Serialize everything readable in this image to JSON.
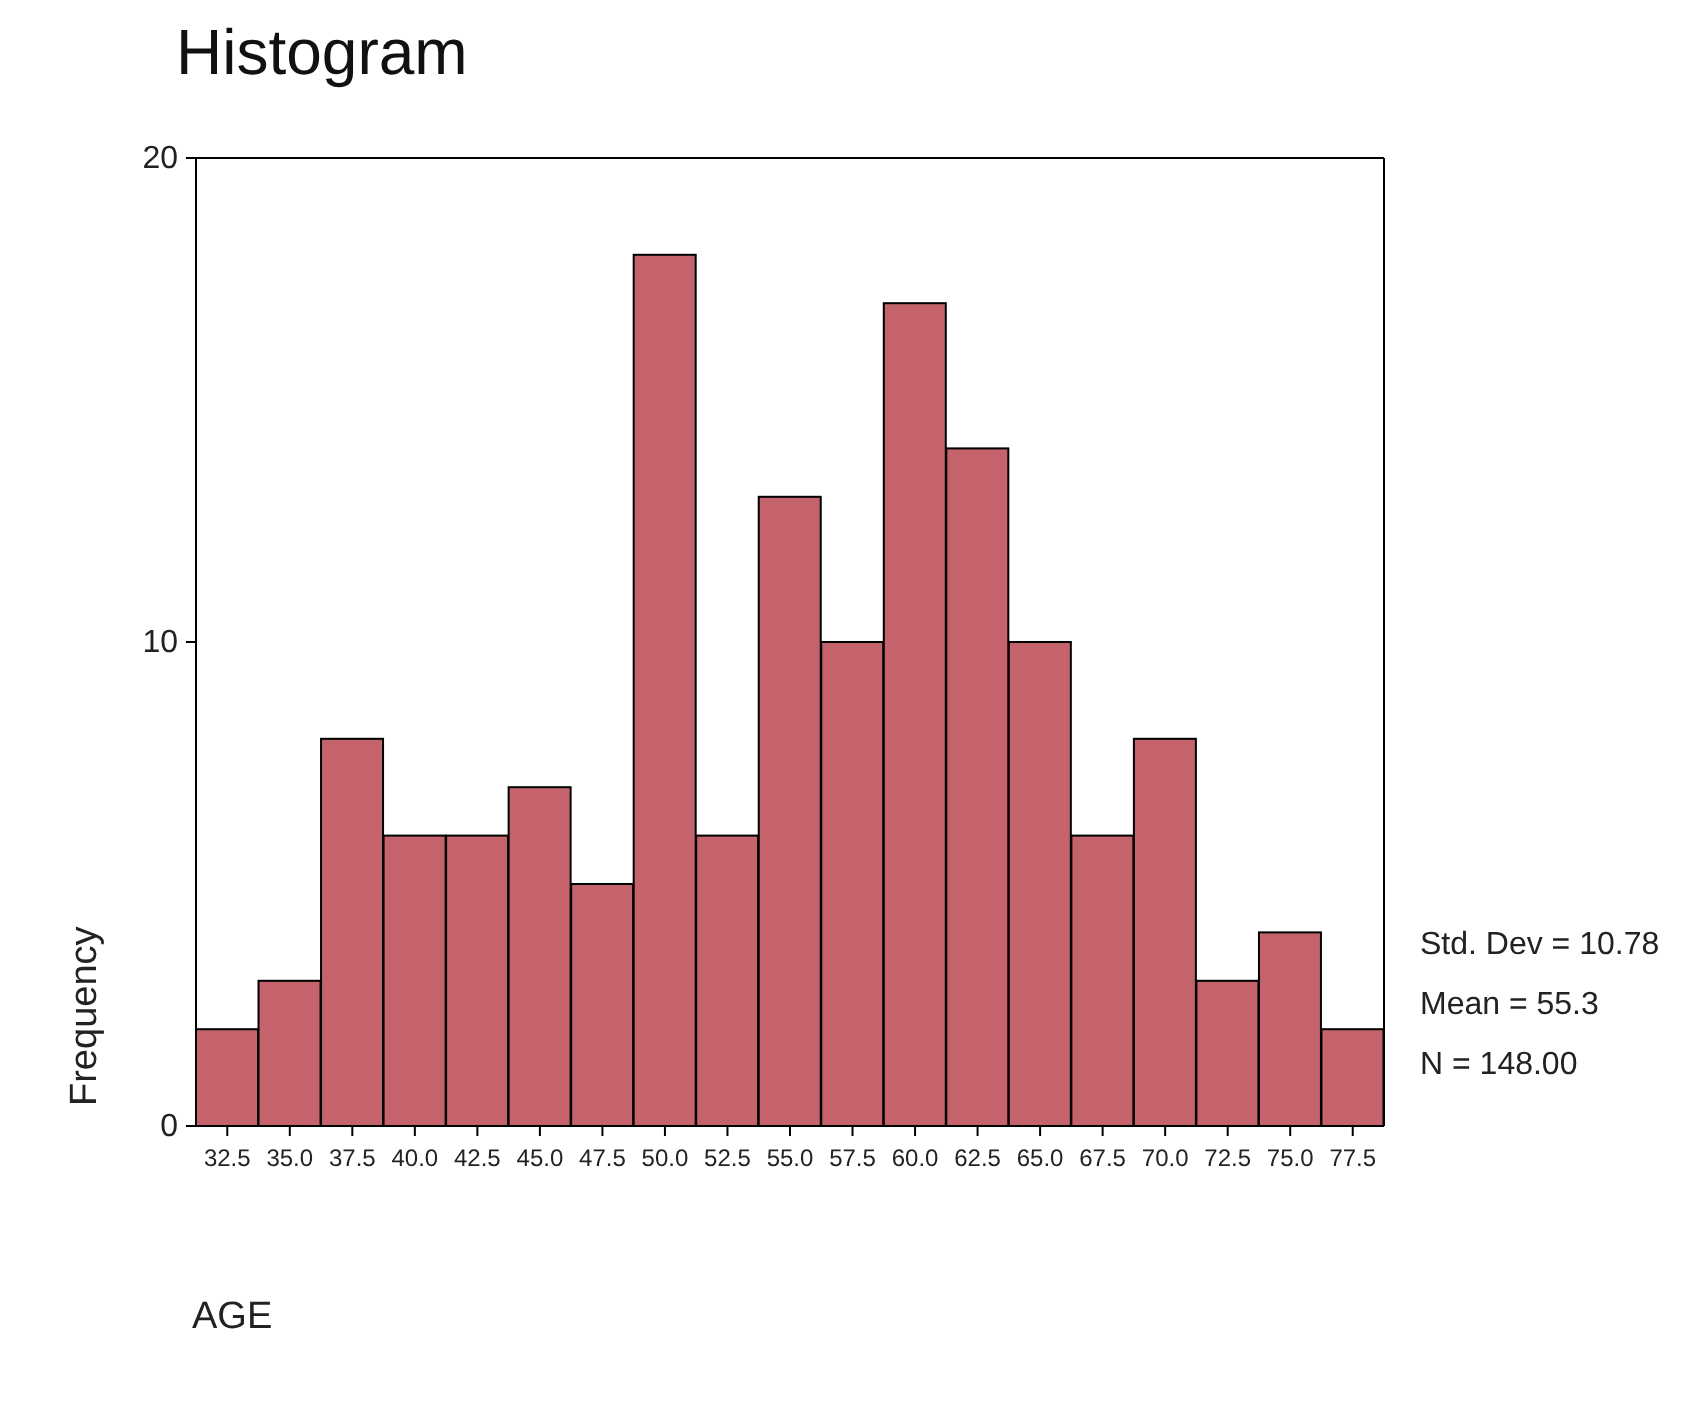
{
  "chart_data": {
    "type": "histogram",
    "title": "Histogram",
    "xlabel": "AGE",
    "ylabel": "Frequency",
    "bins": [
      31.25,
      33.75,
      36.25,
      38.75,
      41.25,
      43.75,
      46.25,
      48.75,
      51.25,
      53.75,
      56.25,
      58.75,
      61.25,
      63.75,
      66.25,
      68.75,
      71.25,
      73.75,
      76.25,
      78.75
    ],
    "values": [
      2,
      3,
      8,
      6,
      6,
      7,
      5,
      18,
      6,
      13,
      10,
      17,
      14,
      10,
      6,
      8,
      3,
      4,
      2
    ],
    "color": "#c4636b",
    "xlim": [
      31.25,
      78.75
    ],
    "xticks": [
      32.5,
      {
        "value": 35,
        "label": "35.0"
      },
      37.5,
      {
        "value": 40,
        "label": "40.0"
      },
      42.5,
      {
        "value": 45,
        "label": "45.0"
      },
      47.5,
      {
        "value": 50,
        "label": "50.0"
      },
      52.5,
      {
        "value": 55,
        "label": "55.0"
      },
      57.5,
      {
        "value": 60,
        "label": "60.0"
      },
      62.5,
      {
        "value": 65,
        "label": "65.0"
      },
      67.5,
      {
        "value": 70,
        "label": "70.0"
      },
      72.5,
      {
        "value": 75,
        "label": "75.0"
      },
      77.5
    ],
    "ylim": [
      0,
      20
    ],
    "yticks": [
      0,
      10,
      20
    ],
    "annotations": [
      "Std. Dev = 10.78",
      "Mean = 55.3",
      "N = 148.00"
    ]
  }
}
